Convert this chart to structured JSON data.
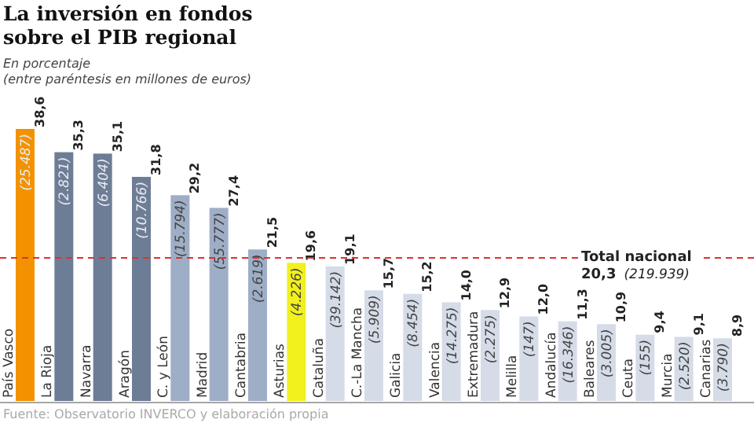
{
  "chart_data": {
    "type": "bar",
    "title": "La inversión en fondos sobre el PIB regional",
    "subtitle": "En porcentaje",
    "categories": [
      "País Vasco",
      "La Rioja",
      "Navarra",
      "Aragón",
      "C. y León",
      "Madrid",
      "Cantabria",
      "Asturias",
      "Cataluña",
      "C.-La Mancha",
      "Galicia",
      "Valencia",
      "Extremadura",
      "Melilla",
      "Andalucía",
      "Baleares",
      "Ceuta",
      "Murcia",
      "Canarias"
    ],
    "values": [
      38.6,
      35.3,
      35.1,
      31.8,
      29.2,
      27.4,
      21.5,
      19.6,
      19.1,
      15.7,
      15.2,
      14.0,
      12.9,
      12.0,
      11.3,
      10.9,
      9.4,
      9.1,
      8.9
    ],
    "value_labels": [
      "38,6",
      "35,3",
      "35,1",
      "31,8",
      "29,2",
      "27,4",
      "21,5",
      "19,6",
      "19,1",
      "15,7",
      "15,2",
      "14,0",
      "12,9",
      "12,0",
      "11,3",
      "10,9",
      "9,4",
      "9,1",
      "8,9"
    ],
    "colors": [
      "#f39200",
      "#6e7d96",
      "#6e7d96",
      "#6e7d96",
      "#9eaec6",
      "#9eaec6",
      "#9eaec6",
      "#f2f01e",
      "#d5dce8",
      "#d5dce8",
      "#d5dce8",
      "#d5dce8",
      "#d5dce8",
      "#d5dce8",
      "#d5dce8",
      "#d5dce8",
      "#d5dce8",
      "#d5dce8",
      "#d5dce8"
    ],
    "ref_lines": [
      {
        "axis": "y",
        "value": 20.3,
        "label": "Total nacional",
        "color": "#e0302e",
        "line_style": "dashed"
      }
    ],
    "annotations": [
      "(entre paréntesis en millones de euros)",
      "20,3",
      "(219.939)",
      "Fuente: Observatorio INVERCO y elaboración propia",
      {
        "text": "(25.487)",
        "x": "País Vasco",
        "y": 38.6
      },
      {
        "text": "(2.821)",
        "x": "La Rioja",
        "y": 35.3
      },
      {
        "text": "(6.404)",
        "x": "Navarra",
        "y": 35.1
      },
      {
        "text": "(10.766)",
        "x": "Aragón",
        "y": 31.8
      },
      {
        "text": "(15.794)",
        "x": "C. y León",
        "y": 29.2
      },
      {
        "text": "(55.777)",
        "x": "Madrid",
        "y": 27.4
      },
      {
        "text": "(2.619)",
        "x": "Cantabria",
        "y": 21.5
      },
      {
        "text": "(4.226)",
        "x": "Asturias",
        "y": 19.6
      },
      {
        "text": "(39.142)",
        "x": "Cataluña",
        "y": 19.1
      },
      {
        "text": "(5.909)",
        "x": "C.-La Mancha",
        "y": 15.7
      },
      {
        "text": "(8.454)",
        "x": "Galicia",
        "y": 15.2
      },
      {
        "text": "(14.275)",
        "x": "Valencia",
        "y": 14.0
      },
      {
        "text": "(2.275)",
        "x": "Extremadura",
        "y": 12.9
      },
      {
        "text": "(147)",
        "x": "Melilla",
        "y": 12.0
      },
      {
        "text": "(16.346)",
        "x": "Andalucía",
        "y": 11.3
      },
      {
        "text": "(3.005)",
        "x": "Baleares",
        "y": 10.9
      },
      {
        "text": "(155)",
        "x": "Ceuta",
        "y": 9.4
      },
      {
        "text": "(2.520)",
        "x": "Murcia",
        "y": 9.1
      },
      {
        "text": "(3.790)",
        "x": "Canarias",
        "y": 8.9
      }
    ]
  }
}
